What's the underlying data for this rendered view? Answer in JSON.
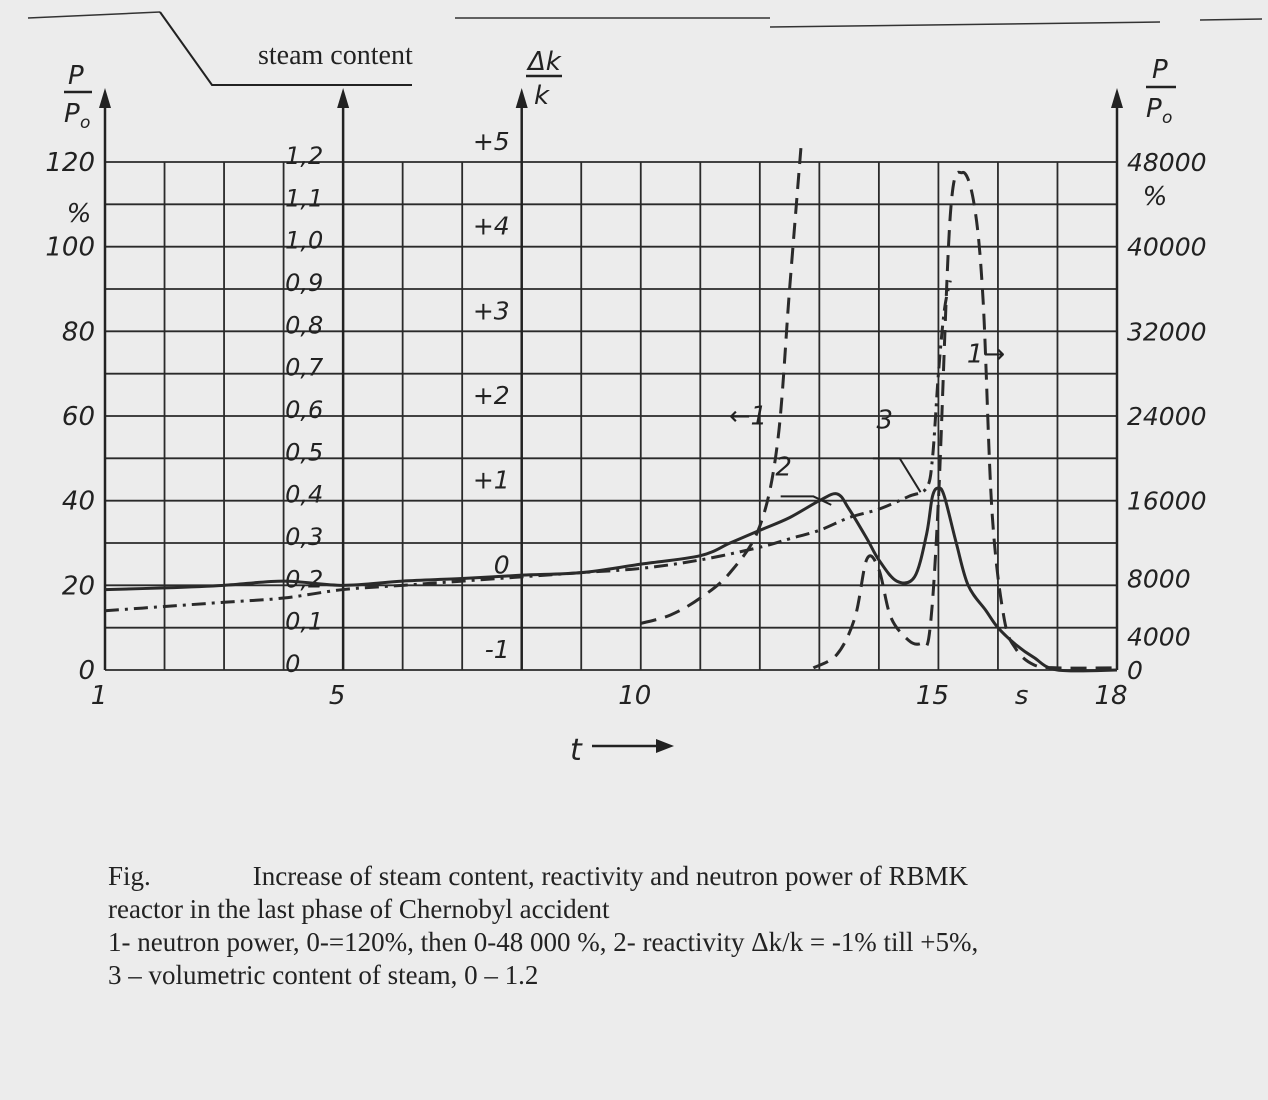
{
  "steam_content_label": "steam content",
  "caption": {
    "line1_fig": "Fig.",
    "line1_text": "Increase of steam content, reactivity and neutron power of RBMK",
    "line2": "reactor in the last phase of Chernobyl accident",
    "line3": "1- neutron power, 0-=120%, then 0-48 000 %, 2- reactivity Δk/k = -1% till +5%,",
    "line4": "3 – volumetric  content of steam, 0 – 1.2"
  },
  "chart_data": {
    "type": "line",
    "grid": true,
    "x_axis": {
      "label": "t",
      "range": [
        1,
        18
      ],
      "ticks": [
        "1",
        "5",
        "10",
        "15",
        "s",
        "18"
      ],
      "tick_values": [
        1,
        5,
        10,
        15,
        16.5,
        18
      ]
    },
    "left_axis": {
      "label": "P/P0",
      "unit": "%",
      "range": [
        0,
        120
      ],
      "ticks": [
        "0",
        "20",
        "40",
        "60",
        "80",
        "100",
        "120"
      ]
    },
    "steam_axis": {
      "label": "steam content",
      "range": [
        0,
        1.2
      ],
      "ticks": [
        "0",
        "0,1",
        "0,2",
        "0,3",
        "0,4",
        "0,5",
        "0,6",
        "0,7",
        "0,8",
        "0,9",
        "1,0",
        "1,1",
        "1,2"
      ]
    },
    "reactivity_axis": {
      "label": "Δk/k",
      "range": [
        -1,
        5
      ],
      "ticks": [
        "-1",
        "0",
        "+1",
        "+2",
        "+3",
        "+4",
        "+5"
      ]
    },
    "right_axis": {
      "label": "P/P0",
      "unit": "%",
      "range": [
        0,
        48000
      ],
      "ticks": [
        "0",
        "4000",
        "8000",
        "16000",
        "24000",
        "32000",
        "40000",
        "48000"
      ]
    },
    "annotations": [
      "←1",
      "1→",
      "2",
      "3"
    ],
    "series": [
      {
        "name": "1",
        "scale": "left (0-120 %)",
        "style": "dashed",
        "x": [
          10.0,
          10.5,
          11.0,
          11.5,
          12.0,
          12.3,
          12.5,
          12.7
        ],
        "y": [
          11,
          13,
          17,
          23,
          34,
          54,
          90,
          125
        ]
      },
      {
        "name": "1",
        "scale": "right (0-48000 %)",
        "style": "dashed",
        "x": [
          12.9,
          13.3,
          13.6,
          13.8,
          14.0,
          14.2,
          14.5,
          14.7,
          14.85,
          15.0,
          15.2,
          15.4,
          15.6,
          15.75,
          15.9,
          16.1,
          16.3,
          16.6,
          17.0,
          18.0
        ],
        "y": [
          200,
          1500,
          5000,
          10500,
          9500,
          5000,
          2800,
          2500,
          3500,
          16000,
          43000,
          47000,
          44000,
          35000,
          15000,
          5000,
          2000,
          500,
          200,
          200
        ]
      },
      {
        "name": "2",
        "scale": "reactivity (-1 to +5)",
        "style": "solid",
        "x": [
          1,
          2,
          3,
          4,
          5,
          6,
          7,
          8,
          9,
          10,
          11,
          11.5,
          12,
          12.5,
          13,
          13.3,
          13.5,
          13.8,
          14,
          14.3,
          14.6,
          14.8,
          14.9,
          15.0,
          15.1,
          15.3,
          15.5,
          15.8,
          16.0,
          16.3,
          16.6,
          17.0,
          18.0
        ],
        "y": [
          -0.05,
          -0.03,
          0,
          0.05,
          0,
          0.05,
          0.08,
          0.12,
          0.15,
          0.25,
          0.35,
          0.5,
          0.65,
          0.8,
          1.0,
          1.08,
          0.9,
          0.55,
          0.3,
          0.05,
          0.1,
          0.6,
          1.05,
          1.15,
          1.05,
          0.5,
          0,
          -0.3,
          -0.5,
          -0.7,
          -0.85,
          -1.0,
          -1.0
        ]
      },
      {
        "name": "3",
        "scale": "steam content (0-1.2)",
        "style": "dash-dot",
        "x": [
          1,
          2,
          3,
          4,
          5,
          6,
          7,
          8,
          9,
          10,
          11,
          12,
          12.5,
          13,
          13.5,
          14,
          14.5,
          14.8,
          14.9,
          15.0,
          15.1,
          15.2
        ],
        "y": [
          0.14,
          0.15,
          0.16,
          0.17,
          0.19,
          0.2,
          0.21,
          0.22,
          0.23,
          0.24,
          0.26,
          0.29,
          0.31,
          0.33,
          0.36,
          0.38,
          0.41,
          0.43,
          0.5,
          0.7,
          0.85,
          0.92
        ]
      }
    ]
  }
}
